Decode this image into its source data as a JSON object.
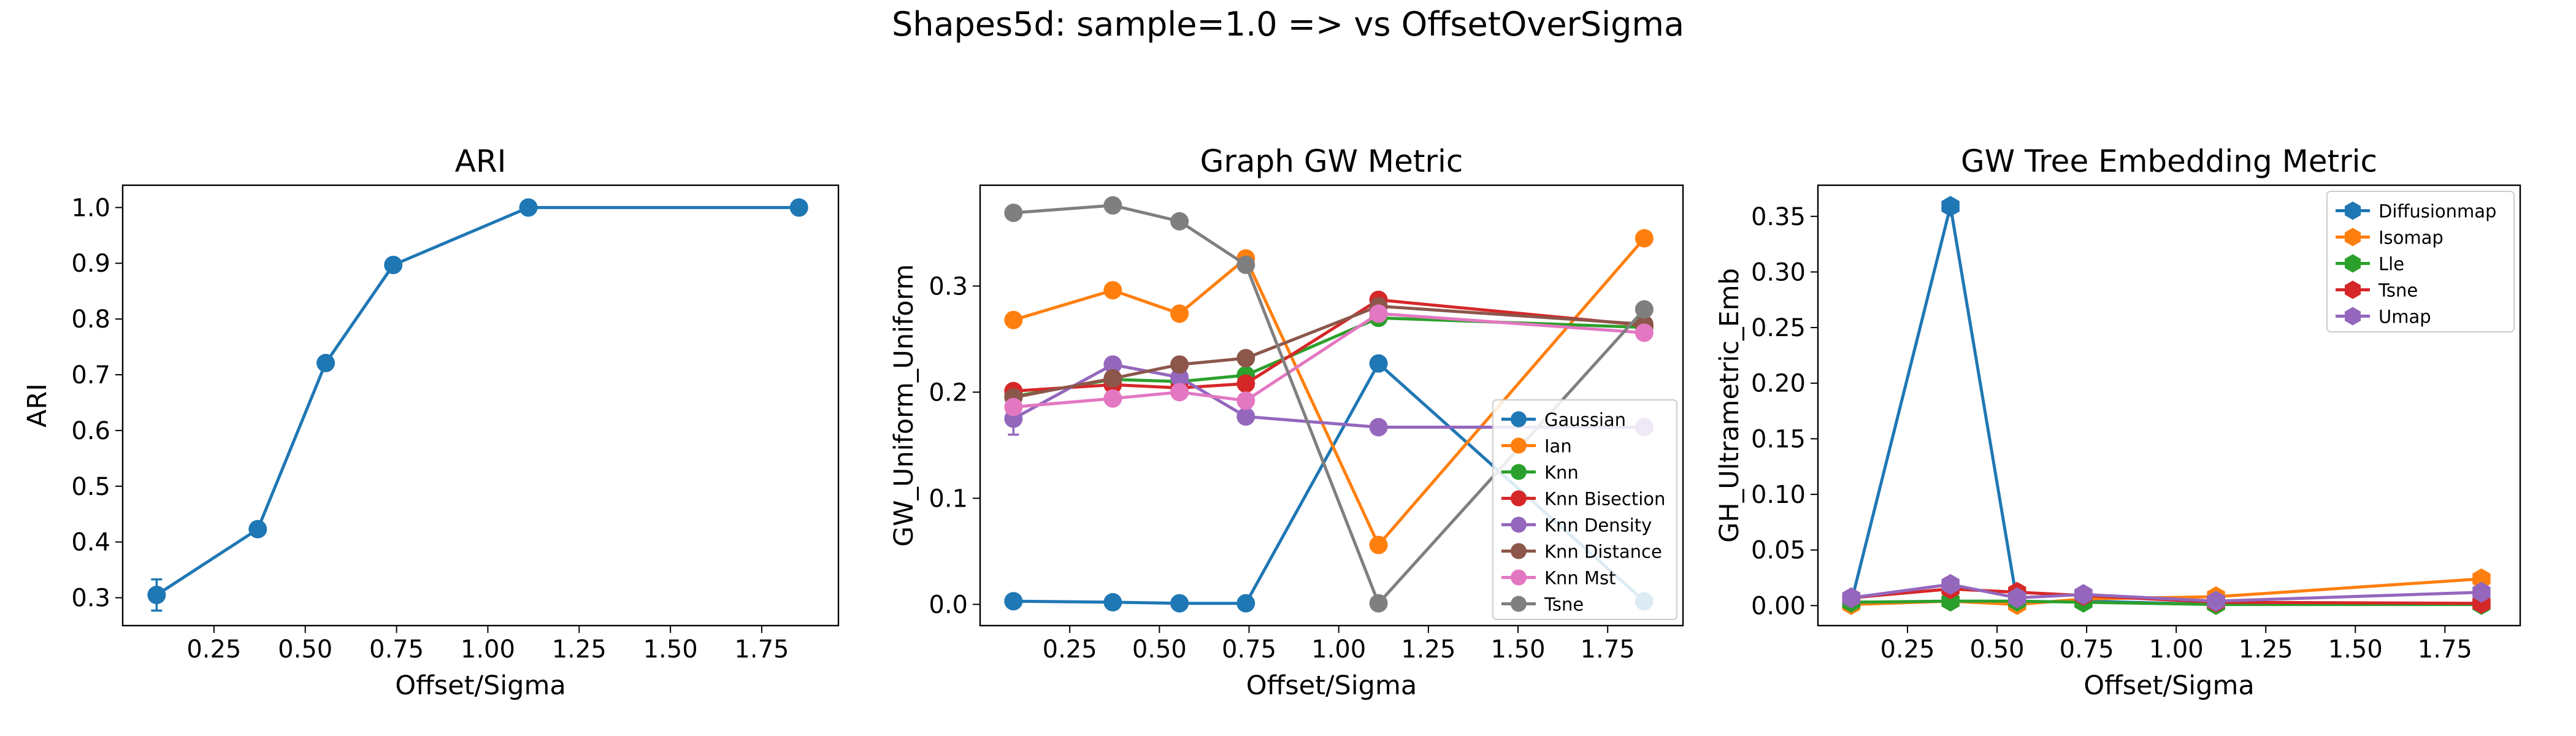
{
  "figure": {
    "suptitle": "Shapes5d: sample=1.0 => vs OffsetOverSigma"
  },
  "chart_data": [
    {
      "type": "line",
      "title": "ARI",
      "xlabel": "Offset/Sigma",
      "ylabel": "ARI",
      "x": [
        0.093,
        0.37,
        0.556,
        0.741,
        1.111,
        1.852
      ],
      "xlim": [
        0.0,
        1.96
      ],
      "ylim": [
        0.25,
        1.04
      ],
      "xticks": [
        "0.25",
        "0.50",
        "0.75",
        "1.00",
        "1.25",
        "1.50",
        "1.75"
      ],
      "yticks": [
        "0.3",
        "0.4",
        "0.5",
        "0.6",
        "0.7",
        "0.8",
        "0.9",
        "1.0"
      ],
      "grid": false,
      "legend": null,
      "series": [
        {
          "color": "#1f77b4",
          "marker": "circle",
          "values": [
            0.305,
            0.423,
            0.721,
            0.897,
            1.0,
            1.0
          ],
          "err": [
            0.028,
            0,
            0,
            0,
            0,
            0
          ]
        }
      ]
    },
    {
      "type": "line",
      "title": "Graph GW Metric",
      "xlabel": "Offset/Sigma",
      "ylabel": "GW_Uniform_Uniform",
      "x": [
        0.093,
        0.37,
        0.556,
        0.741,
        1.111,
        1.852
      ],
      "xlim": [
        0.0,
        1.96
      ],
      "ylim": [
        -0.02,
        0.395
      ],
      "xticks": [
        "0.25",
        "0.50",
        "0.75",
        "1.00",
        "1.25",
        "1.50",
        "1.75"
      ],
      "yticks": [
        "0.0",
        "0.1",
        "0.2",
        "0.3"
      ],
      "grid": false,
      "legend": "lower-right",
      "series": [
        {
          "name": "Gaussian",
          "color": "#1f77b4",
          "marker": "circle",
          "values": [
            0.003,
            0.002,
            0.001,
            0.001,
            0.227,
            0.003
          ]
        },
        {
          "name": "Ian",
          "color": "#ff7f0e",
          "marker": "circle",
          "values": [
            0.268,
            0.296,
            0.274,
            0.326,
            0.056,
            0.345
          ]
        },
        {
          "name": "Knn",
          "color": "#2ca02c",
          "marker": "circle",
          "values": [
            0.196,
            0.212,
            0.21,
            0.216,
            0.27,
            0.261
          ]
        },
        {
          "name": "Knn Bisection",
          "color": "#d62728",
          "marker": "circle",
          "values": [
            0.201,
            0.207,
            0.204,
            0.208,
            0.287,
            0.263
          ]
        },
        {
          "name": "Knn Density",
          "color": "#9467bd",
          "marker": "circle",
          "values": [
            0.175,
            0.226,
            0.214,
            0.177,
            0.167,
            0.167
          ],
          "err": [
            0.015,
            0,
            0,
            0,
            0,
            0
          ]
        },
        {
          "name": "Knn Distance",
          "color": "#8c564b",
          "marker": "circle",
          "values": [
            0.195,
            0.213,
            0.226,
            0.232,
            0.281,
            0.264
          ]
        },
        {
          "name": "Knn Mst",
          "color": "#e377c2",
          "marker": "circle",
          "values": [
            0.186,
            0.194,
            0.2,
            0.192,
            0.274,
            0.256
          ]
        },
        {
          "name": "Tsne",
          "color": "#7f7f7f",
          "marker": "circle",
          "values": [
            0.369,
            0.376,
            0.361,
            0.32,
            0.001,
            0.278
          ]
        }
      ]
    },
    {
      "type": "line",
      "title": "GW Tree Embedding Metric",
      "xlabel": "Offset/Sigma",
      "ylabel": "GH_Ultrametric_Emb",
      "x": [
        0.093,
        0.37,
        0.556,
        0.741,
        1.111,
        1.852
      ],
      "xlim": [
        0.0,
        1.96
      ],
      "ylim": [
        -0.018,
        0.378
      ],
      "xticks": [
        "0.25",
        "0.50",
        "0.75",
        "1.00",
        "1.25",
        "1.50",
        "1.75"
      ],
      "yticks": [
        "0.00",
        "0.05",
        "0.10",
        "0.15",
        "0.20",
        "0.25",
        "0.30",
        "0.35"
      ],
      "grid": false,
      "legend": "upper-right",
      "series": [
        {
          "name": "Diffusionmap",
          "color": "#1f77b4",
          "marker": "hexagon",
          "values": [
            0.003,
            0.359,
            0.003,
            0.004,
            0.001,
            0.002
          ]
        },
        {
          "name": "Isomap",
          "color": "#ff7f0e",
          "marker": "hexagon",
          "values": [
            0.001,
            0.004,
            0.001,
            0.006,
            0.008,
            0.024
          ]
        },
        {
          "name": "Lle",
          "color": "#2ca02c",
          "marker": "hexagon",
          "values": [
            0.003,
            0.004,
            0.004,
            0.003,
            0.001,
            0.001
          ]
        },
        {
          "name": "Tsne",
          "color": "#d62728",
          "marker": "hexagon",
          "values": [
            0.007,
            0.015,
            0.012,
            0.009,
            0.003,
            0.002
          ]
        },
        {
          "name": "Umap",
          "color": "#9467bd",
          "marker": "hexagon",
          "values": [
            0.007,
            0.019,
            0.007,
            0.01,
            0.004,
            0.012
          ]
        }
      ]
    }
  ]
}
